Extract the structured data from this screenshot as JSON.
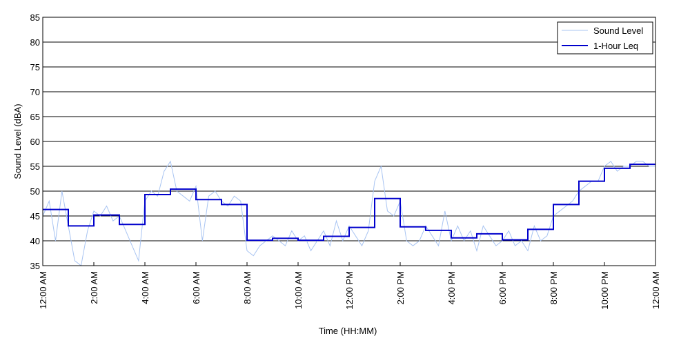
{
  "chart_data": {
    "type": "line",
    "title": "",
    "xlabel": "Time (HH:MM)",
    "ylabel": "Sound Level (dBA)",
    "x_unit": "hour of day",
    "xlim": [
      0,
      24
    ],
    "ylim": [
      35,
      85
    ],
    "y_ticks": [
      35,
      40,
      45,
      50,
      55,
      60,
      65,
      70,
      75,
      80,
      85
    ],
    "x_ticks": [
      {
        "at": 0,
        "label": "12:00 AM"
      },
      {
        "at": 2,
        "label": "2:00 AM"
      },
      {
        "at": 4,
        "label": "4:00 AM"
      },
      {
        "at": 6,
        "label": "6:00 AM"
      },
      {
        "at": 8,
        "label": "8:00 AM"
      },
      {
        "at": 10,
        "label": "10:00 AM"
      },
      {
        "at": 12,
        "label": "12:00 PM"
      },
      {
        "at": 14,
        "label": "2:00 PM"
      },
      {
        "at": 16,
        "label": "4:00 PM"
      },
      {
        "at": 18,
        "label": "6:00 PM"
      },
      {
        "at": 20,
        "label": "8:00 PM"
      },
      {
        "at": 22,
        "label": "10:00 PM"
      },
      {
        "at": 24,
        "label": "12:00 AM"
      }
    ],
    "grid": "horizontal",
    "legend_position": "top-right",
    "series": [
      {
        "name": "Sound Level",
        "color": "#a8c4f2",
        "style": "thin-line",
        "x": [
          0,
          0.25,
          0.5,
          0.75,
          1,
          1.25,
          1.5,
          1.75,
          2,
          2.25,
          2.5,
          2.75,
          3,
          3.25,
          3.5,
          3.75,
          4,
          4.25,
          4.5,
          4.75,
          5,
          5.25,
          5.5,
          5.75,
          6,
          6.25,
          6.5,
          6.75,
          7,
          7.25,
          7.5,
          7.75,
          8,
          8.25,
          8.5,
          8.75,
          9,
          9.25,
          9.5,
          9.75,
          10,
          10.25,
          10.5,
          10.75,
          11,
          11.25,
          11.5,
          11.75,
          12,
          12.25,
          12.5,
          12.75,
          13,
          13.25,
          13.5,
          13.75,
          14,
          14.25,
          14.5,
          14.75,
          15,
          15.25,
          15.5,
          15.75,
          16,
          16.25,
          16.5,
          16.75,
          17,
          17.25,
          17.5,
          17.75,
          18,
          18.25,
          18.5,
          18.75,
          19,
          19.25,
          19.5,
          19.75,
          20,
          20.25,
          20.5,
          20.75,
          21,
          21.25,
          21.5,
          21.75,
          22,
          22.25,
          22.5,
          22.75,
          23,
          23.25,
          23.5,
          23.75,
          24
        ],
        "y": [
          45,
          48,
          40,
          50,
          43,
          36,
          35,
          42,
          46,
          45,
          47,
          44,
          45,
          42,
          39,
          36,
          48,
          50,
          49,
          54,
          56,
          50,
          49,
          48,
          51,
          40,
          49,
          50,
          48,
          47,
          49,
          48,
          38,
          37,
          39,
          40,
          41,
          40,
          39,
          42,
          40,
          41,
          38,
          40,
          42,
          39,
          44,
          40,
          43,
          41,
          39,
          42,
          52,
          55,
          46,
          45,
          48,
          40,
          39,
          40,
          43,
          41,
          39,
          46,
          40,
          43,
          40,
          42,
          38,
          43,
          41,
          39,
          40,
          42,
          39,
          40,
          38,
          43,
          40,
          41,
          45,
          46,
          47,
          48,
          50,
          51,
          52,
          52,
          55,
          56,
          54,
          55,
          55,
          56,
          56,
          55,
          55
        ]
      },
      {
        "name": "1-Hour Leq",
        "color": "#0000cc",
        "style": "step",
        "step_edges": [
          0,
          1,
          2,
          3,
          4,
          5,
          6,
          7,
          8,
          9,
          10,
          11,
          12,
          13,
          14,
          15,
          16,
          17,
          18,
          19,
          20,
          21,
          22,
          23,
          24
        ],
        "values": [
          46.3,
          43.0,
          45.2,
          43.3,
          49.3,
          50.4,
          48.3,
          47.3,
          40.1,
          40.5,
          40.1,
          40.9,
          42.7,
          48.5,
          42.8,
          42.1,
          40.6,
          41.4,
          40.2,
          42.3,
          47.3,
          52.0,
          54.6,
          55.4
        ]
      }
    ]
  }
}
